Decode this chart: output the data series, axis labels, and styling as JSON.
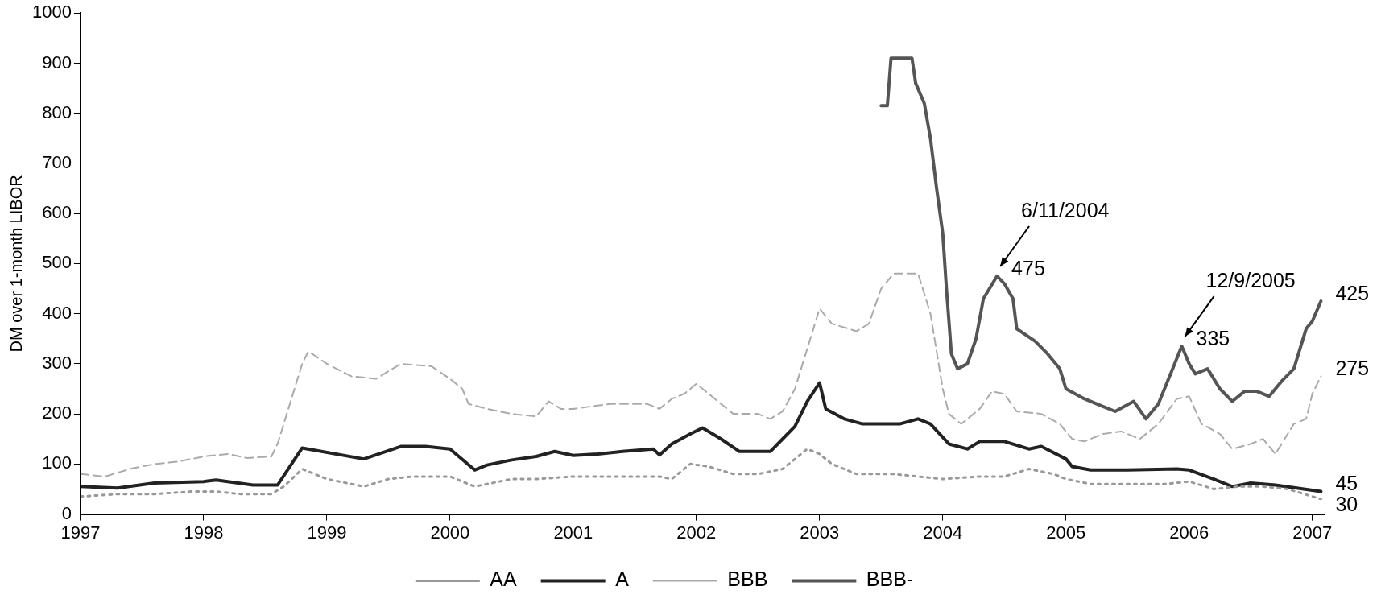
{
  "chart_data": {
    "type": "line",
    "ylabel": "DM over 1-month LIBOR",
    "xlim": [
      1997,
      2007.1
    ],
    "xticks": [
      1997,
      1998,
      1999,
      2000,
      2001,
      2002,
      2003,
      2004,
      2005,
      2006,
      2007
    ],
    "ylim": [
      0,
      1000
    ],
    "yticks": [
      0,
      100,
      200,
      300,
      400,
      500,
      600,
      700,
      800,
      900,
      1000
    ],
    "grid": false,
    "legend": "bottom",
    "marker": "none",
    "series": [
      {
        "name": "AA",
        "color": "#999999",
        "line_style": "dotted",
        "x": [
          1997.0,
          1997.3,
          1997.6,
          1997.9,
          1998.1,
          1998.3,
          1998.55,
          1998.65,
          1998.8,
          1999.0,
          1999.3,
          1999.5,
          1999.7,
          2000.0,
          2000.2,
          2000.5,
          2000.7,
          2001.0,
          2001.3,
          2001.5,
          2001.7,
          2001.8,
          2001.95,
          2002.1,
          2002.3,
          2002.5,
          2002.7,
          2002.9,
          2003.0,
          2003.1,
          2003.3,
          2003.6,
          2003.8,
          2004.0,
          2004.3,
          2004.5,
          2004.7,
          2004.9,
          2005.0,
          2005.2,
          2005.5,
          2005.8,
          2006.0,
          2006.2,
          2006.4,
          2006.6,
          2006.8,
          2007.07
        ],
        "values": [
          35,
          40,
          40,
          45,
          45,
          40,
          40,
          55,
          90,
          70,
          55,
          70,
          75,
          75,
          55,
          70,
          70,
          75,
          75,
          75,
          75,
          70,
          100,
          95,
          80,
          80,
          90,
          130,
          120,
          100,
          80,
          80,
          75,
          70,
          75,
          75,
          90,
          80,
          70,
          60,
          60,
          60,
          65,
          50,
          55,
          55,
          50,
          30
        ]
      },
      {
        "name": "A",
        "color": "#222222",
        "line_style": "solid",
        "x": [
          1997.0,
          1997.3,
          1997.6,
          1998.0,
          1998.1,
          1998.4,
          1998.6,
          1998.8,
          1999.3,
          1999.6,
          1999.8,
          2000.0,
          2000.2,
          2000.3,
          2000.5,
          2000.7,
          2000.85,
          2001.0,
          2001.2,
          2001.4,
          2001.65,
          2001.7,
          2001.8,
          2001.95,
          2002.05,
          2002.2,
          2002.35,
          2002.6,
          2002.7,
          2002.8,
          2002.9,
          2003.0,
          2003.05,
          2003.2,
          2003.35,
          2003.65,
          2003.8,
          2003.9,
          2004.05,
          2004.2,
          2004.3,
          2004.5,
          2004.7,
          2004.8,
          2005.0,
          2005.05,
          2005.2,
          2005.5,
          2005.9,
          2006.0,
          2006.2,
          2006.35,
          2006.5,
          2006.7,
          2007.07
        ],
        "values": [
          55,
          52,
          62,
          65,
          68,
          58,
          58,
          132,
          110,
          135,
          135,
          130,
          88,
          98,
          108,
          115,
          125,
          117,
          120,
          125,
          130,
          118,
          140,
          160,
          172,
          150,
          125,
          125,
          150,
          175,
          225,
          262,
          210,
          190,
          180,
          180,
          190,
          180,
          140,
          130,
          145,
          145,
          130,
          135,
          110,
          95,
          88,
          88,
          90,
          88,
          70,
          55,
          62,
          58,
          45
        ]
      },
      {
        "name": "BBB",
        "color": "#aaaaaa",
        "line_style": "dashed",
        "x": [
          1997.0,
          1997.2,
          1997.4,
          1997.6,
          1997.8,
          1998.0,
          1998.2,
          1998.35,
          1998.55,
          1998.6,
          1998.7,
          1998.8,
          1998.85,
          1999.0,
          1999.2,
          1999.4,
          1999.6,
          1999.85,
          2000.0,
          2000.1,
          2000.15,
          2000.3,
          2000.5,
          2000.7,
          2000.8,
          2000.9,
          2001.0,
          2001.3,
          2001.6,
          2001.7,
          2001.8,
          2001.9,
          2002.0,
          2002.15,
          2002.3,
          2002.5,
          2002.6,
          2002.7,
          2002.8,
          2002.9,
          2003.0,
          2003.1,
          2003.3,
          2003.4,
          2003.5,
          2003.6,
          2003.8,
          2003.9,
          2004.0,
          2004.05,
          2004.15,
          2004.3,
          2004.4,
          2004.5,
          2004.6,
          2004.8,
          2004.95,
          2005.05,
          2005.15,
          2005.3,
          2005.45,
          2005.6,
          2005.75,
          2005.9,
          2006.0,
          2006.1,
          2006.25,
          2006.35,
          2006.5,
          2006.6,
          2006.7,
          2006.85,
          2006.95,
          2007.0,
          2007.07
        ],
        "values": [
          80,
          75,
          90,
          100,
          105,
          115,
          120,
          112,
          115,
          140,
          220,
          300,
          325,
          300,
          275,
          270,
          300,
          295,
          270,
          250,
          220,
          210,
          200,
          195,
          225,
          210,
          210,
          220,
          220,
          210,
          230,
          240,
          260,
          230,
          200,
          200,
          190,
          205,
          250,
          330,
          410,
          380,
          365,
          380,
          450,
          480,
          480,
          400,
          250,
          200,
          180,
          210,
          245,
          240,
          205,
          200,
          180,
          150,
          145,
          160,
          165,
          150,
          180,
          230,
          235,
          180,
          160,
          130,
          140,
          150,
          120,
          180,
          190,
          240,
          275
        ]
      },
      {
        "name": "BBB-",
        "color": "#555555",
        "line_style": "solid",
        "x": [
          2003.5,
          2003.55,
          2003.58,
          2003.75,
          2003.78,
          2003.85,
          2003.9,
          2003.95,
          2004.0,
          2004.03,
          2004.07,
          2004.12,
          2004.2,
          2004.27,
          2004.33,
          2004.44,
          2004.5,
          2004.57,
          2004.6,
          2004.75,
          2004.85,
          2004.95,
          2005.0,
          2005.15,
          2005.3,
          2005.4,
          2005.55,
          2005.65,
          2005.75,
          2005.85,
          2005.94,
          2006.0,
          2006.05,
          2006.15,
          2006.25,
          2006.35,
          2006.45,
          2006.55,
          2006.65,
          2006.75,
          2006.85,
          2006.95,
          2007.0,
          2007.07
        ],
        "values": [
          815,
          815,
          910,
          910,
          860,
          820,
          750,
          650,
          560,
          450,
          320,
          290,
          300,
          350,
          430,
          475,
          460,
          430,
          370,
          345,
          320,
          290,
          250,
          230,
          215,
          205,
          225,
          190,
          220,
          280,
          335,
          300,
          280,
          290,
          250,
          225,
          245,
          245,
          235,
          265,
          290,
          370,
          385,
          425
        ]
      }
    ],
    "annotations": [
      {
        "text": "6/11/2004",
        "x": 2004.44,
        "y": 475
      },
      {
        "text": "475",
        "x": 2004.44,
        "y": 475
      },
      {
        "text": "12/9/2005",
        "x": 2005.94,
        "y": 335
      },
      {
        "text": "335",
        "x": 2005.94,
        "y": 335
      },
      {
        "text": "425",
        "x": 2007.07,
        "y": 425
      },
      {
        "text": "275",
        "x": 2007.07,
        "y": 275
      },
      {
        "text": "45",
        "x": 2007.07,
        "y": 45
      },
      {
        "text": "30",
        "x": 2007.07,
        "y": 30
      }
    ]
  }
}
